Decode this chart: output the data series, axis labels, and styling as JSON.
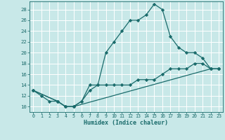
{
  "title": "",
  "xlabel": "Humidex (Indice chaleur)",
  "ylabel": "",
  "xlim": [
    -0.5,
    23.5
  ],
  "ylim": [
    9.0,
    29.5
  ],
  "yticks": [
    10,
    12,
    14,
    16,
    18,
    20,
    22,
    24,
    26,
    28
  ],
  "xticks": [
    0,
    1,
    2,
    3,
    4,
    5,
    6,
    7,
    8,
    9,
    10,
    11,
    12,
    13,
    14,
    15,
    16,
    17,
    18,
    19,
    20,
    21,
    22,
    23
  ],
  "background_color": "#c8e8e8",
  "grid_color": "#b0d8d8",
  "line_color": "#1a6b6b",
  "lines": [
    {
      "x": [
        0,
        1,
        2,
        3,
        4,
        5,
        6,
        7,
        8,
        9,
        10,
        11,
        12,
        13,
        14,
        15,
        16,
        17,
        18,
        19,
        20,
        21,
        22,
        23
      ],
      "y": [
        13,
        12,
        11,
        11,
        10,
        10,
        11,
        14,
        14,
        20,
        22,
        24,
        26,
        26,
        27,
        29,
        28,
        23,
        21,
        20,
        20,
        19,
        17,
        17
      ]
    },
    {
      "x": [
        0,
        3,
        4,
        5,
        22,
        23
      ],
      "y": [
        13,
        11,
        10,
        10,
        17,
        17
      ]
    },
    {
      "x": [
        0,
        3,
        4,
        5,
        6,
        7,
        8,
        9,
        10,
        11,
        12,
        13,
        14,
        15,
        16,
        17,
        18,
        19,
        20,
        21,
        22,
        23
      ],
      "y": [
        13,
        11,
        10,
        10,
        11,
        13,
        14,
        14,
        14,
        14,
        14,
        15,
        15,
        15,
        16,
        17,
        17,
        17,
        18,
        18,
        17,
        17
      ]
    }
  ]
}
